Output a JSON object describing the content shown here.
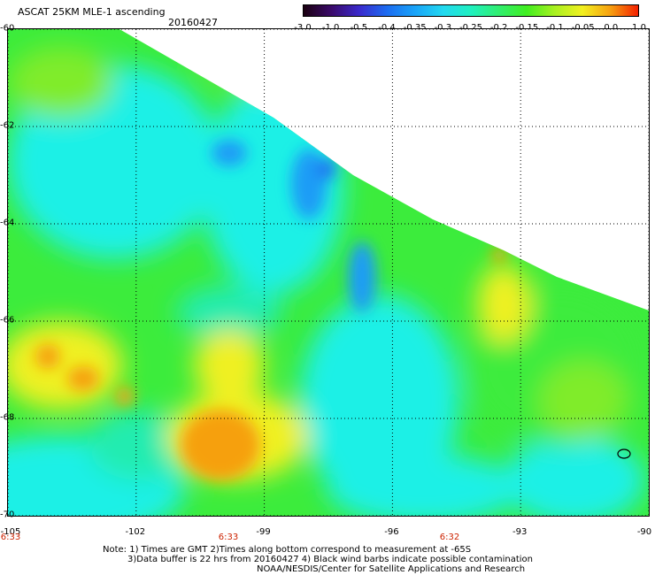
{
  "header": {
    "title": "ASCAT 25KM MLE-1 ascending",
    "date": "20160427"
  },
  "colorbar": {
    "ticks": [
      "-3.0",
      "-1.0",
      "-0.5",
      "-0.4",
      "-0.35",
      "-0.3",
      "-0.25",
      "-0.2",
      "-0.15",
      "-0.1",
      "-0.05",
      "0.0",
      "1.0"
    ],
    "stops": [
      "#1a0010",
      "#3a0a6a",
      "#3a2acc",
      "#1c6cf0",
      "#1aa4f8",
      "#22d8f0",
      "#20f0c0",
      "#30ee70",
      "#40ee20",
      "#a8f020",
      "#f2f020",
      "#f6a010",
      "#f42000"
    ]
  },
  "map": {
    "lat_labels": [
      "-60",
      "-62",
      "-64",
      "-66",
      "-68",
      "-70"
    ],
    "lon_labels": [
      "-105",
      "-102",
      "-99",
      "-96",
      "-93",
      "-90"
    ],
    "time_labels": [
      "6:33",
      "6:33",
      "6:32"
    ],
    "lat_range": [
      -70,
      -60
    ],
    "lon_range": [
      -105,
      -90
    ],
    "colors": {
      "no_data": "#ffffff",
      "cyan": "#1ef0e6",
      "aqua_green": "#22ecb0",
      "green": "#3cec3c",
      "light_green": "#80ec2a",
      "yellow": "#f0f020",
      "orange": "#f6a010",
      "blue": "#1e9cf6",
      "deep_blue": "#1c6cf0"
    }
  },
  "notes": {
    "line1": "Note: 1) Times are GMT 2)Times along bottom correspond to measurement at -65S",
    "line2": "3)Data buffer is 22 hrs from 20160427 4) Black wind barbs indicate possible contamination",
    "line3": "NOAA/NESDIS/Center for Satellite Applications and Research"
  }
}
